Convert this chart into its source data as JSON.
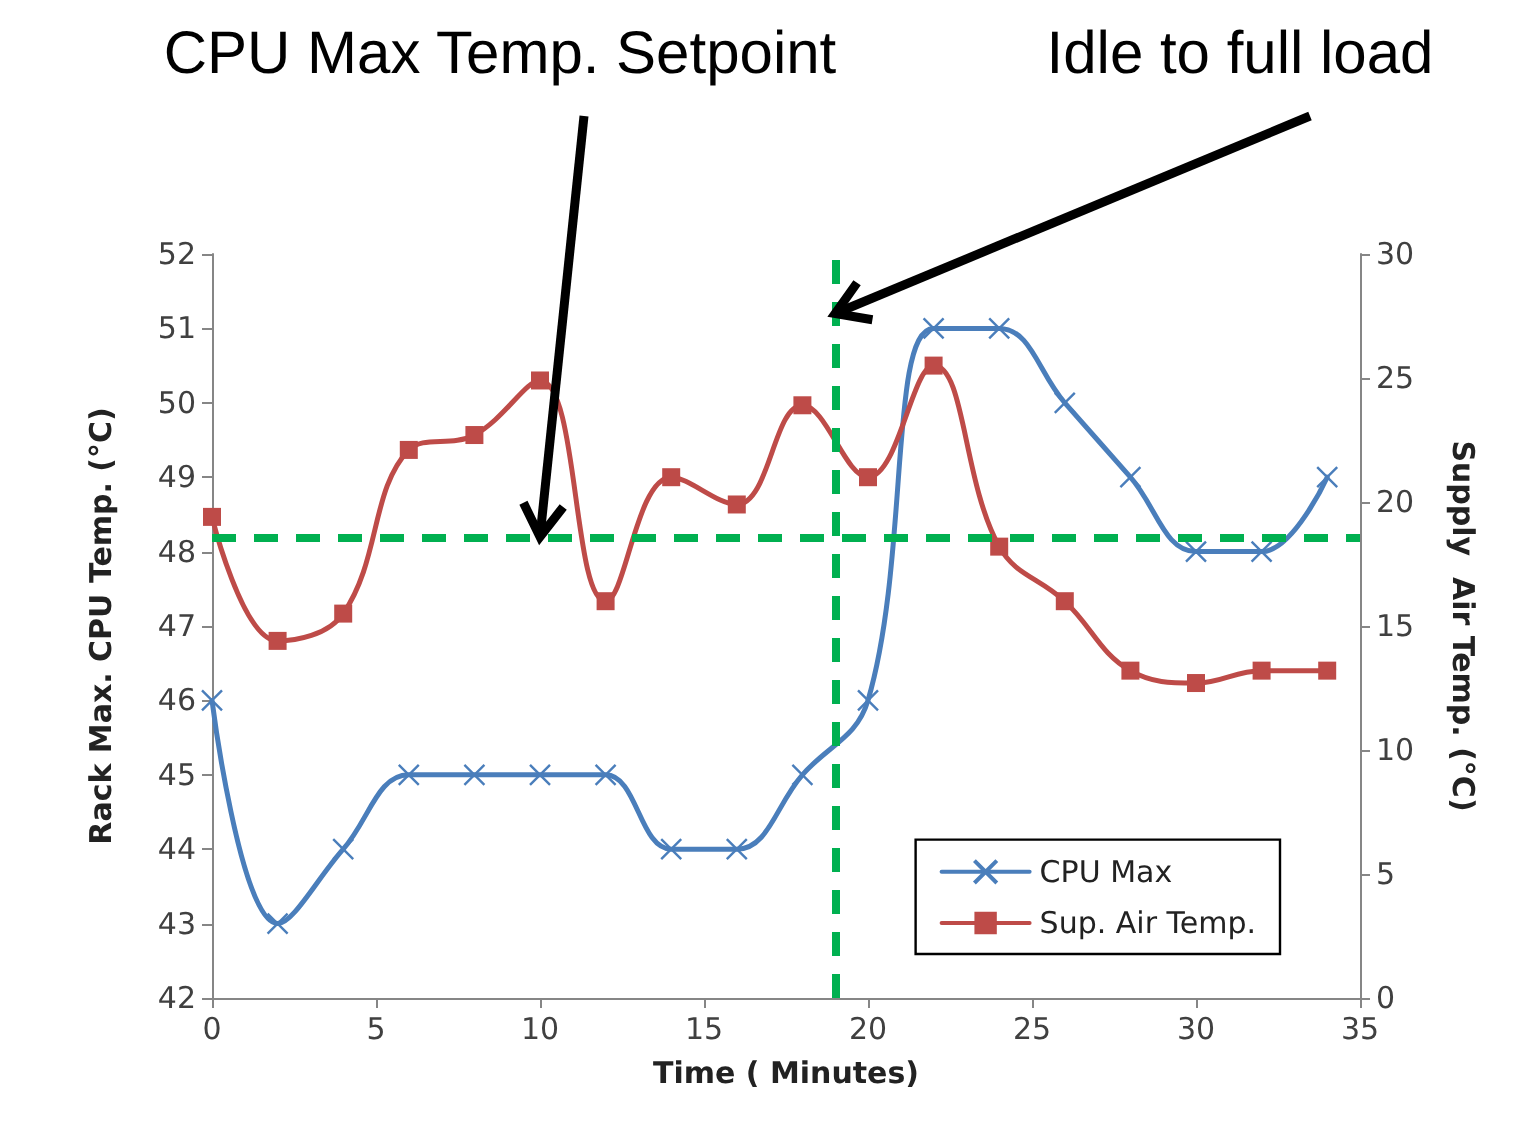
{
  "chart_data": {
    "type": "line",
    "xlabel": "Time ( Minutes)",
    "ylabel": "Rack Max. CPU Temp. (°C)",
    "y2label": "Supply  Air Temp. (°C)",
    "x": [
      0,
      2,
      4,
      6,
      8,
      10,
      12,
      14,
      16,
      18,
      20,
      22,
      24,
      26,
      28,
      30,
      32,
      34
    ],
    "series": [
      {
        "name": "CPU Max",
        "color": "#4a7ebb",
        "marker": "cross",
        "values": [
          46,
          43,
          44,
          45,
          45,
          45,
          45,
          44,
          44,
          45,
          46,
          51,
          51,
          50,
          49,
          48,
          48,
          49
        ]
      },
      {
        "name": "Sup. Air Temp.",
        "color": "#be4b48",
        "marker": "square",
        "axis": "y2",
        "values": [
          19.4,
          14.4,
          15.5,
          22.1,
          22.7,
          24.9,
          16.0,
          21.0,
          19.9,
          23.9,
          21.0,
          25.5,
          18.2,
          16.0,
          13.2,
          12.7,
          13.2,
          13.2
        ]
      }
    ],
    "xlim": [
      0,
      35
    ],
    "xticks": [
      0,
      5,
      10,
      15,
      20,
      25,
      30,
      35
    ],
    "ylim": [
      42,
      52
    ],
    "yticks": [
      42,
      43,
      44,
      45,
      46,
      47,
      48,
      49,
      50,
      51,
      52
    ],
    "y2lim": [
      0,
      30
    ],
    "y2ticks": [
      0,
      5,
      10,
      15,
      20,
      25,
      30
    ],
    "ref_lines": [
      {
        "axis": "y",
        "value": 48.2,
        "color": "#00b050",
        "line_style": "dashed"
      },
      {
        "axis": "x",
        "value": 19,
        "color": "#00b050",
        "line_style": "dashed"
      }
    ],
    "annotations": [
      {
        "text": "CPU Max Temp. Setpoint",
        "x": 10,
        "y": 48.2
      },
      {
        "text": "Idle to full load",
        "x": 19,
        "y": 51.2
      }
    ],
    "grid": false,
    "legend": "bottom right"
  }
}
